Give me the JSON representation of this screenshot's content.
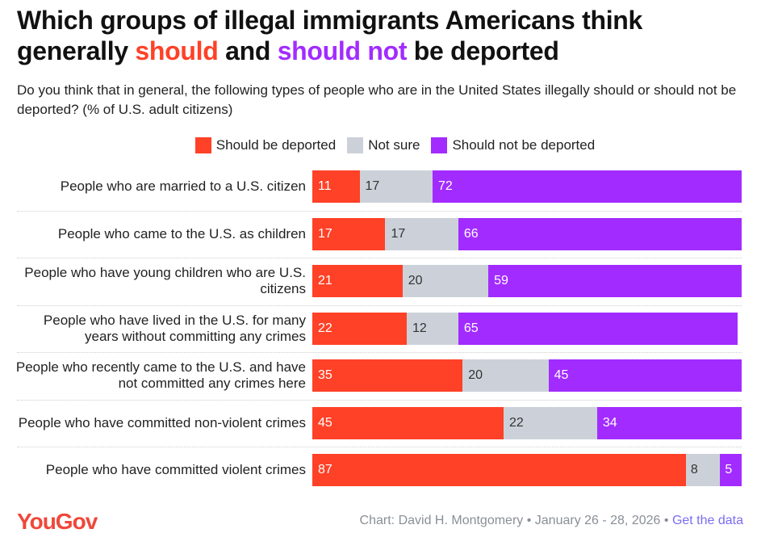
{
  "title": {
    "line1": "Which groups of illegal immigrants Americans think",
    "pre": "generally ",
    "should": "should",
    "mid": " and ",
    "should_not": "should not",
    "post": " be deported"
  },
  "subtitle": "Do you think that in general, the following types of people who are in the United States illegally should or should not be deported? (% of U.S. adult citizens)",
  "colors": {
    "should": "#ff4127",
    "not_sure": "#ccd1d9",
    "should_not": "#a22cff"
  },
  "footer": {
    "logo": "YouGov",
    "credit": "Chart: David H. Montgomery • January 26 - 28, 2026 • ",
    "link": "Get the data"
  },
  "chart_data": {
    "type": "bar",
    "stacked": true,
    "orientation": "horizontal",
    "legend_position": "top",
    "categories": [
      "People who are married to a U.S. citizen",
      "People who came to the U.S. as children",
      "People who have young children who are U.S. citizens",
      "People who have lived in the U.S. for many years without committing any crimes",
      "People who recently came to the U.S. and have not committed any crimes here",
      "People who have committed non-violent crimes",
      "People who have committed violent crimes"
    ],
    "series": [
      {
        "name": "Should be deported",
        "values": [
          11,
          17,
          21,
          22,
          35,
          45,
          87
        ]
      },
      {
        "name": "Not sure",
        "values": [
          17,
          17,
          20,
          12,
          20,
          22,
          8
        ]
      },
      {
        "name": "Should not be deported",
        "values": [
          72,
          66,
          59,
          65,
          45,
          34,
          5
        ]
      }
    ],
    "xlim": [
      0,
      100
    ]
  }
}
